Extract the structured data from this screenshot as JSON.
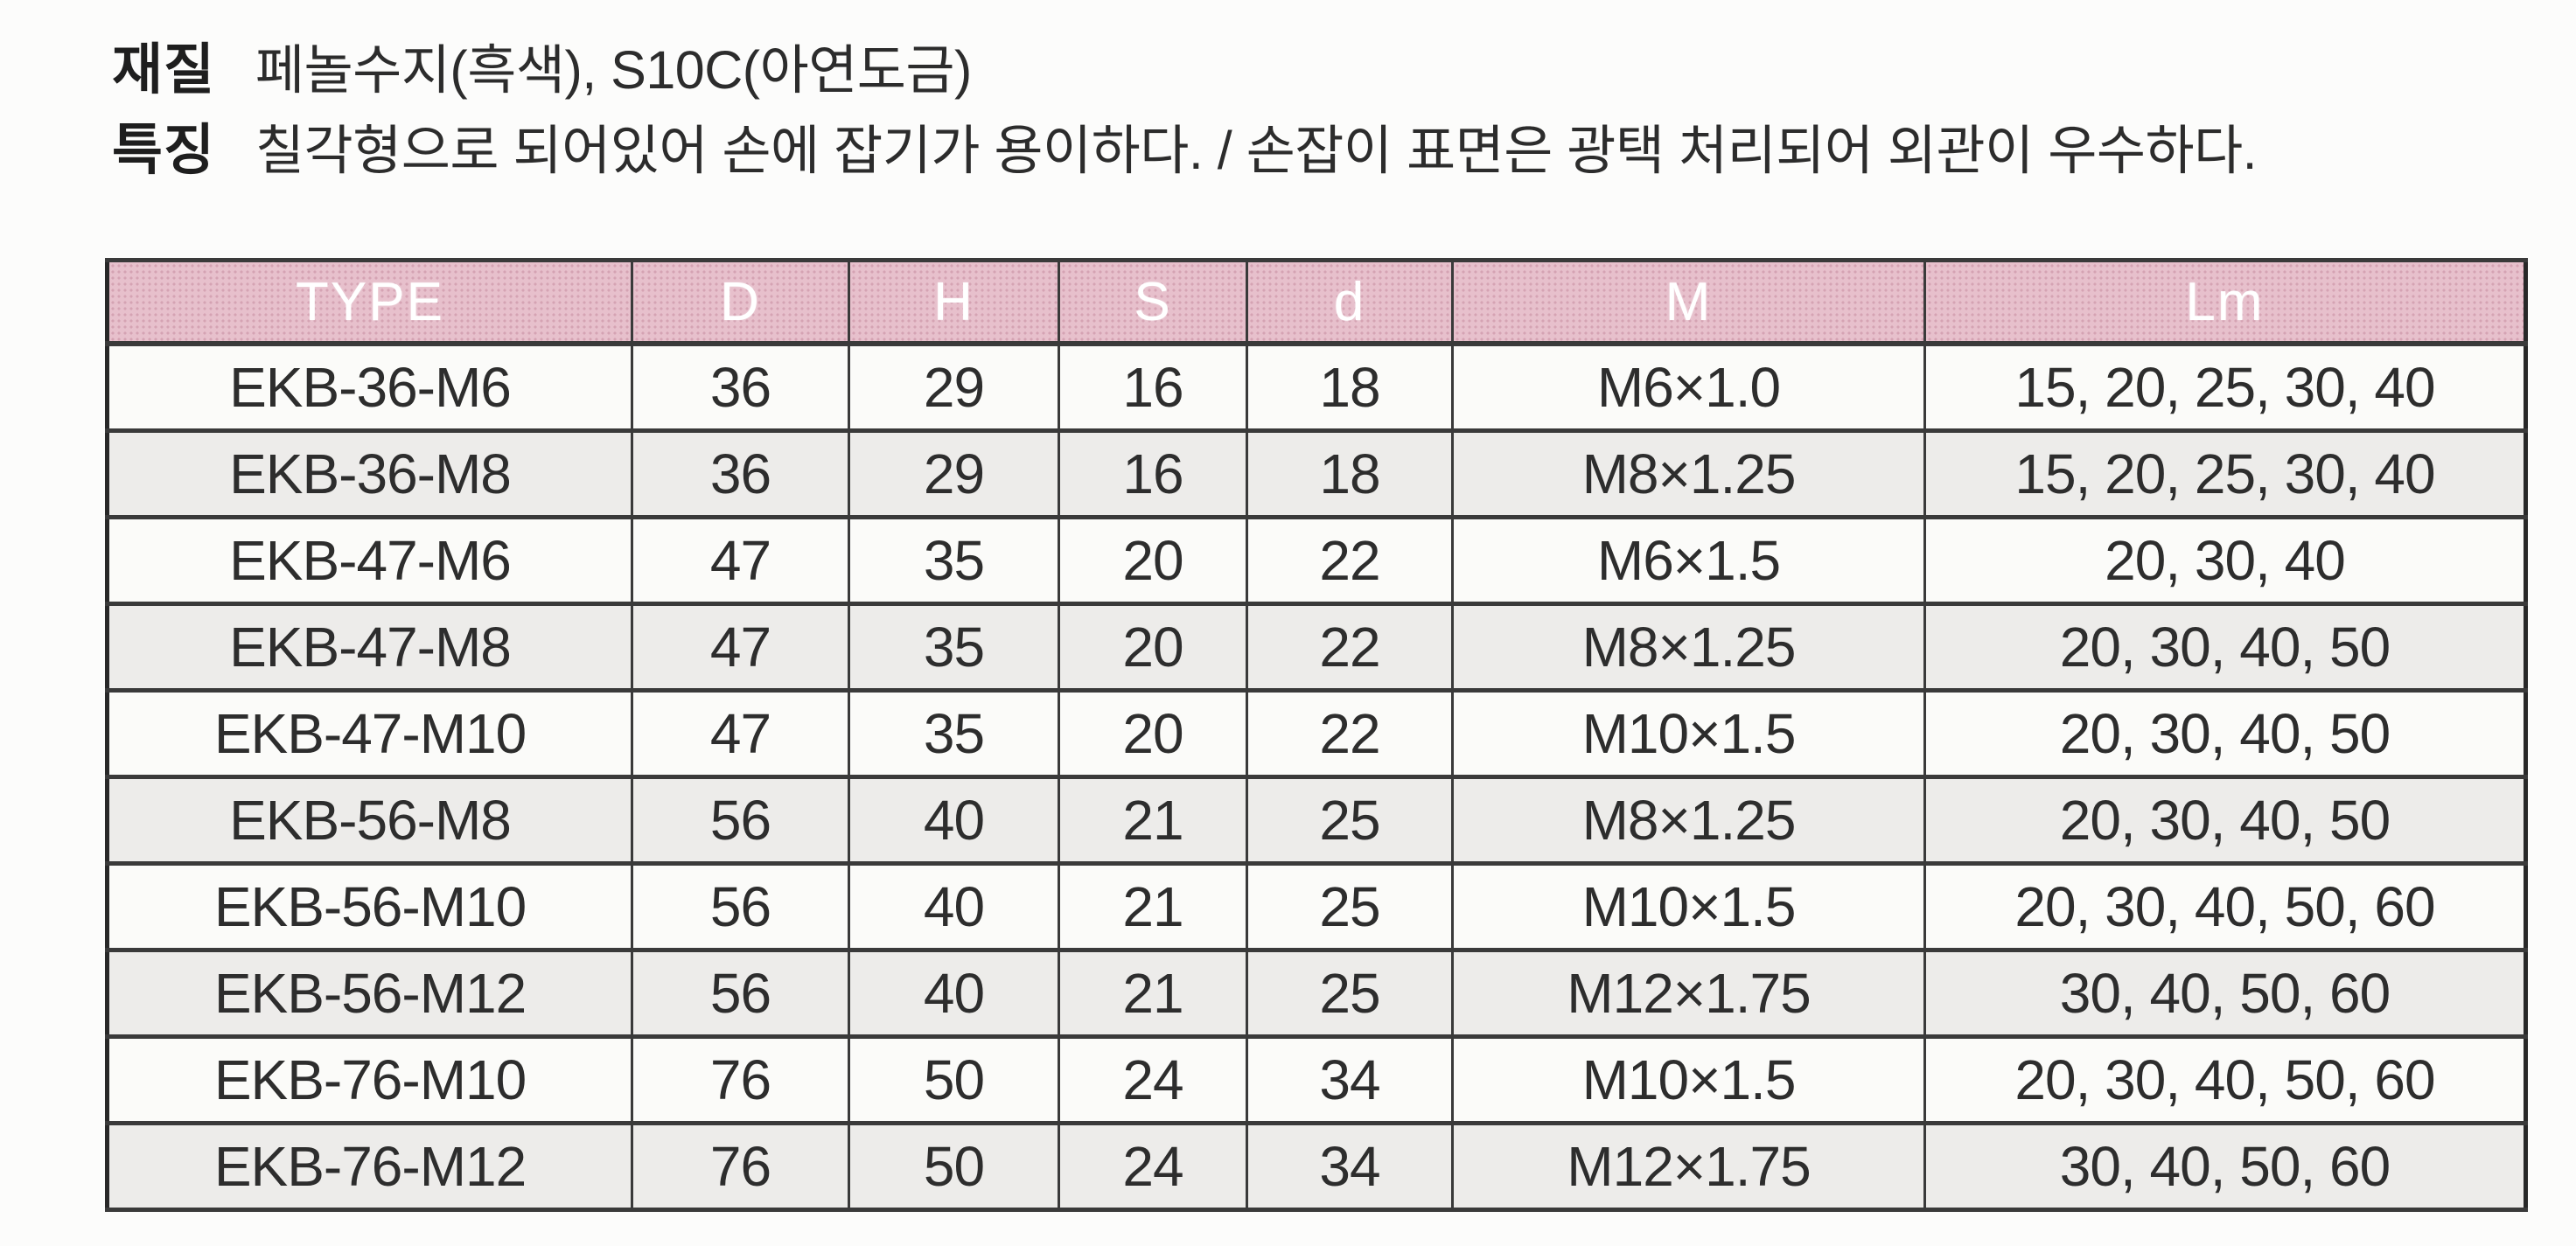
{
  "page": {
    "info": [
      {
        "label": "재질",
        "value": "페놀수지(흑색), S10C(아연도금)"
      },
      {
        "label": "특징",
        "value": "칠각형으로 되어있어 손에 잡기가 용이하다. / 손잡이 표면은 광택 처리되어 외관이 우수하다."
      }
    ]
  },
  "table": {
    "columns": [
      "TYPE",
      "D",
      "H",
      "S",
      "d",
      "M",
      "Lm"
    ],
    "rows": [
      [
        "EKB-36-M6",
        "36",
        "29",
        "16",
        "18",
        "M6×1.0",
        "15, 20, 25, 30, 40"
      ],
      [
        "EKB-36-M8",
        "36",
        "29",
        "16",
        "18",
        "M8×1.25",
        "15, 20, 25, 30, 40"
      ],
      [
        "EKB-47-M6",
        "47",
        "35",
        "20",
        "22",
        "M6×1.5",
        "20, 30, 40"
      ],
      [
        "EKB-47-M8",
        "47",
        "35",
        "20",
        "22",
        "M8×1.25",
        "20, 30, 40, 50"
      ],
      [
        "EKB-47-M10",
        "47",
        "35",
        "20",
        "22",
        "M10×1.5",
        "20, 30, 40, 50"
      ],
      [
        "EKB-56-M8",
        "56",
        "40",
        "21",
        "25",
        "M8×1.25",
        "20, 30, 40, 50"
      ],
      [
        "EKB-56-M10",
        "56",
        "40",
        "21",
        "25",
        "M10×1.5",
        "20, 30, 40, 50, 60"
      ],
      [
        "EKB-56-M12",
        "56",
        "40",
        "21",
        "25",
        "M12×1.75",
        "30, 40, 50, 60"
      ],
      [
        "EKB-76-M10",
        "76",
        "50",
        "24",
        "34",
        "M10×1.5",
        "20, 30, 40, 50, 60"
      ],
      [
        "EKB-76-M12",
        "76",
        "50",
        "24",
        "34",
        "M12×1.75",
        "30, 40, 50, 60"
      ]
    ],
    "colors": {
      "header_bg": "#e7c0cc",
      "header_text": "#ffffff",
      "row_bg": "#fbfbf9",
      "row_alt_bg": "#edecea",
      "cell_text": "#2d2d2d",
      "border": "#3a3a3a"
    }
  }
}
